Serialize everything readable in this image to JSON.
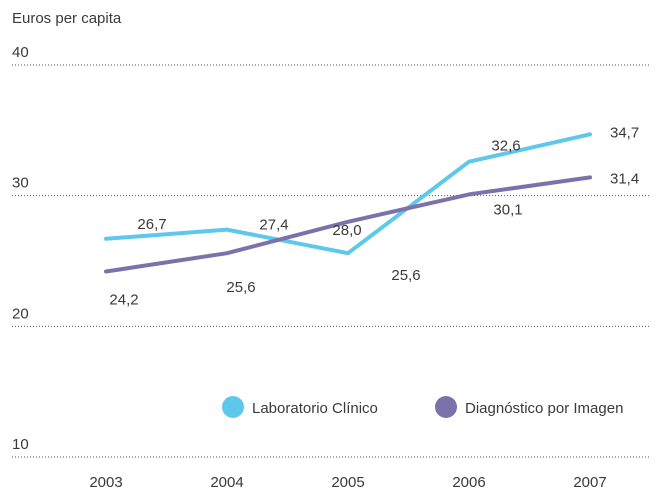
{
  "chart_data": {
    "type": "line",
    "ylabel": "Euros per capita",
    "ylim": [
      10,
      40
    ],
    "yticks": [
      "40",
      "30",
      "20",
      "10"
    ],
    "categories": [
      "2003",
      "2004",
      "2005",
      "2006",
      "2007"
    ],
    "grid": true,
    "legend_position": "bottom-right",
    "series": [
      {
        "name": "Laboratorio Clínico",
        "color": "#5ec8ec",
        "values": [
          26.7,
          27.4,
          25.6,
          32.6,
          34.7
        ],
        "labels": [
          "26,7",
          "27,4",
          "25,6",
          "32,6",
          "34,7"
        ]
      },
      {
        "name": "Diagnóstico por Imagen",
        "color": "#7b72ac",
        "values": [
          24.2,
          25.6,
          28.0,
          30.1,
          31.4
        ],
        "labels": [
          "24,2",
          "25,6",
          "28,0",
          "30,1",
          "31,4"
        ]
      }
    ]
  }
}
